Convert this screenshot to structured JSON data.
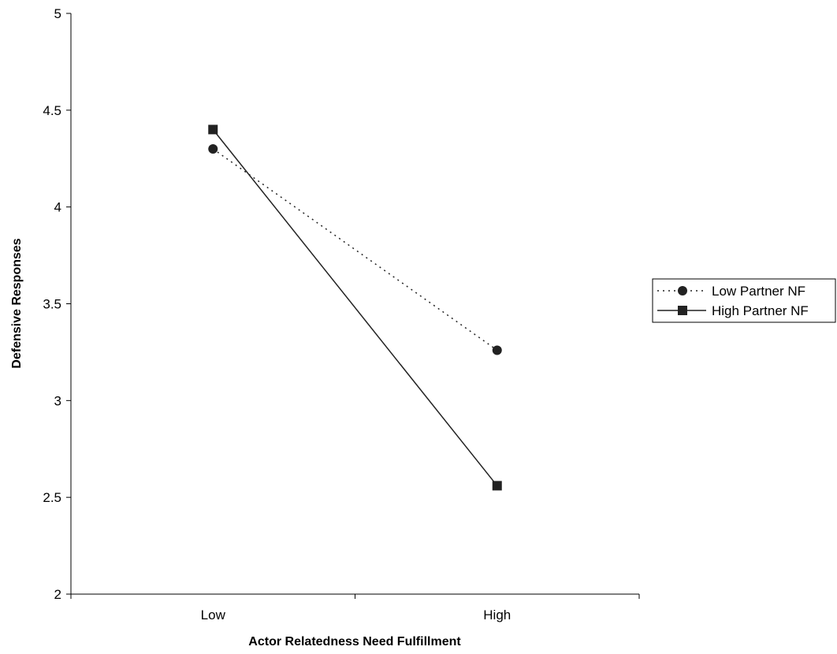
{
  "chart_data": {
    "type": "line",
    "title": "",
    "xlabel": "Actor Relatedness Need Fulfillment",
    "ylabel": "Defensive Responses",
    "categories": [
      "Low",
      "High"
    ],
    "ylim": [
      2,
      5
    ],
    "yticks": [
      "2",
      "2.5",
      "3",
      "3.5",
      "4",
      "4.5",
      "5"
    ],
    "grid": false,
    "legend_position": "right",
    "series": [
      {
        "name": "Low Partner NF",
        "values": [
          4.3,
          3.26
        ],
        "marker": "circle",
        "line_style": "dotted",
        "color": "#222222"
      },
      {
        "name": "High Partner NF",
        "values": [
          4.4,
          2.56
        ],
        "marker": "square",
        "line_style": "solid",
        "color": "#222222"
      }
    ]
  }
}
